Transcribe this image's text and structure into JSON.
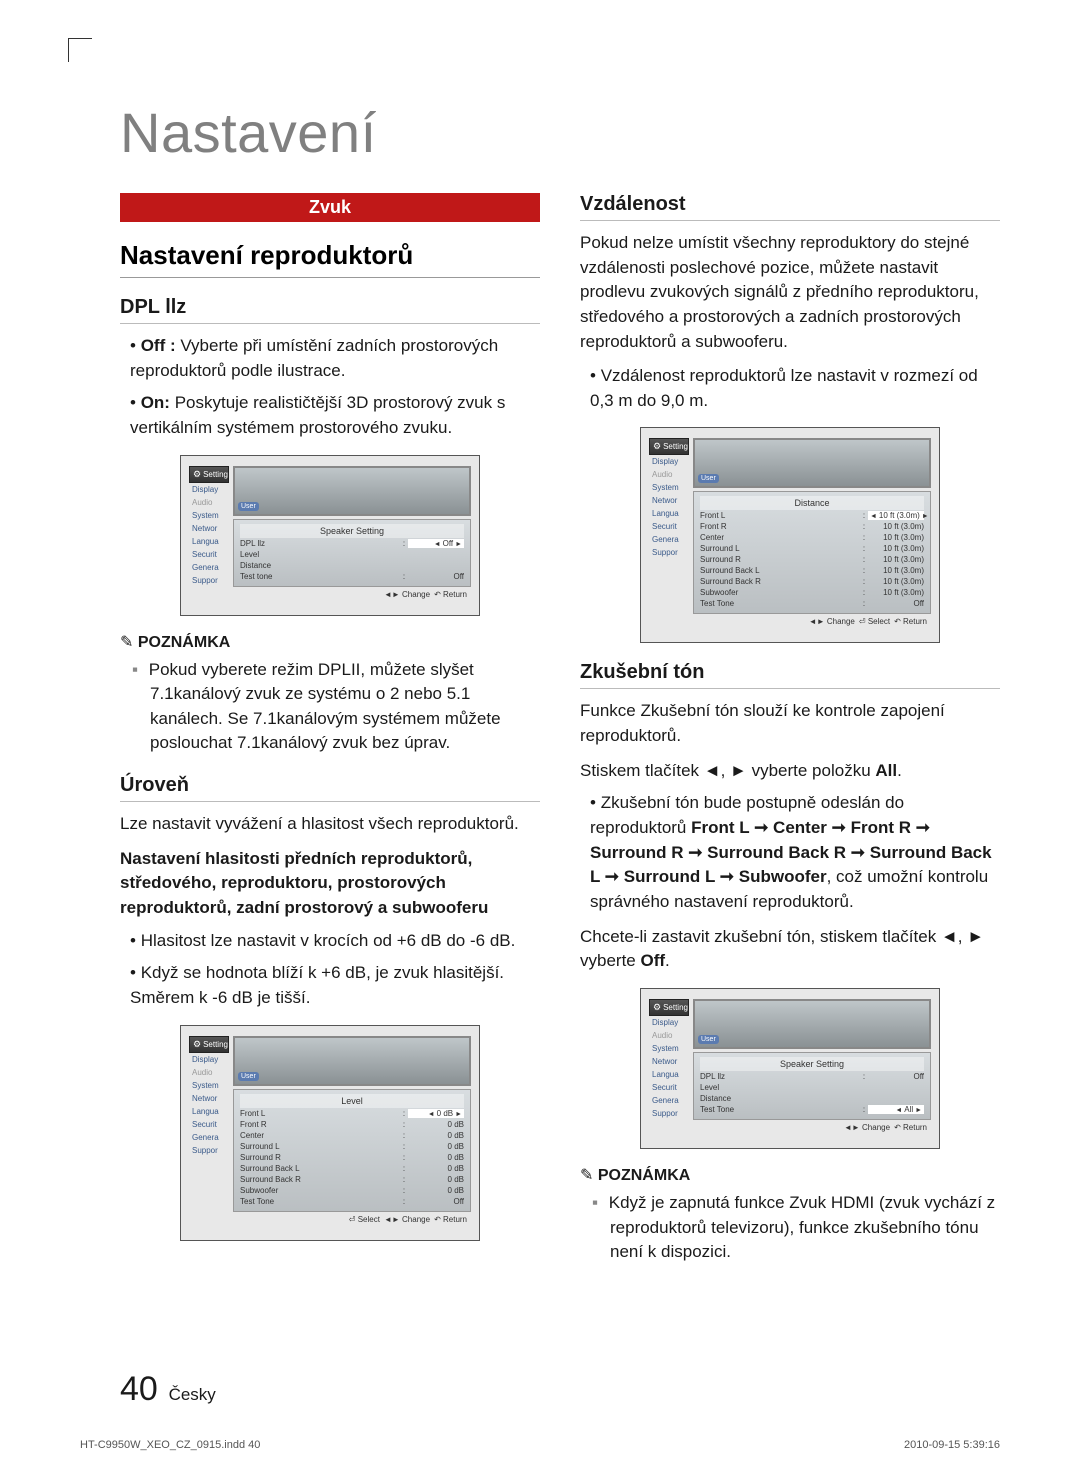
{
  "page": {
    "title": "Nastavení",
    "number": "40",
    "lang": "Česky",
    "indd": "HT-C9950W_XEO_CZ_0915.indd   40",
    "timestamp": "2010-09-15     5:39:16"
  },
  "left": {
    "tab": "Zvuk",
    "h2": "Nastavení reproduktorů",
    "dpl": {
      "title": "DPL llz",
      "items": [
        "Off : Vyberte při umístění zadních prostorových reproduktorů podle ilustrace.",
        "On: Poskytuje realističtější 3D prostorový zvuk s vertikálním systémem prostorového zvuku."
      ],
      "bold_prefixes": [
        "Off :",
        "On:"
      ]
    },
    "note_label": "POZNÁMKA",
    "note1": "Pokud vyberete režim DPLII, můžete slyšet 7.1kanálový zvuk ze systému o 2 nebo 5.1 kanálech. Se 7.1kanálovým systémem můžete poslouchat 7.1kanálový zvuk bez úprav.",
    "level": {
      "title": "Úroveň",
      "p1": "Lze nastavit vyvážení a hlasitost všech reproduktorů.",
      "p2": "Nastavení hlasitosti předních reproduktorů, středového, reproduktoru, prostorových reproduktorů, zadní prostorový a subwooferu",
      "items": [
        "Hlasitost lze nastavit v krocích od +6 dB do -6 dB.",
        "Když se hodnota blíží k +6 dB, je zvuk hlasitější. Směrem k -6 dB je tišší."
      ]
    }
  },
  "right": {
    "dist": {
      "title": "Vzdálenost",
      "p1": "Pokud nelze umístit všechny reproduktory do stejné vzdálenosti poslechové pozice, můžete nastavit prodlevu zvukových signálů z předního reproduktoru, středového a prostorových a zadních prostorových reproduktorů a subwooferu.",
      "item1": "Vzdálenost reproduktorů lze nastavit v rozmezí od 0,3 m do 9,0 m."
    },
    "tone": {
      "title": "Zkušební tón",
      "p1": "Funkce Zkušební tón slouží ke kontrole zapojení reproduktorů.",
      "p2_pre": "Stiskem tlačítek ◄, ► vyberte položku ",
      "p2_bold": "All",
      "item1_pre": "Zkušební tón bude postupně odeslán do reproduktorů ",
      "item1_bold": "Front L ➞ Center ➞ Front R ➞ Surround R ➞ Surround Back R ➞ Surround Back L ➞ Surround L ➞ Subwoofer",
      "item1_post": ", což umožní kontrolu správného nastavení reproduktorů.",
      "p3_pre": "Chcete-li zastavit zkušební tón, stiskem tlačítek ◄, ► vyberte ",
      "p3_bold": "Off",
      "note": "Když je zapnutá funkce Zvuk HDMI (zvuk vychází z reproduktorů televizoru), funkce zkušebního tónu není k dispozici."
    }
  },
  "tv": {
    "sidebar_head": "Setting",
    "sidebar": [
      "Display",
      "Audio",
      "System",
      "Networ",
      "Langua",
      "Securit",
      "Genera",
      "Suppor"
    ],
    "audio_dim_index": 1,
    "user_badge": "User",
    "footer_change": "◄► Change",
    "footer_select": "⏎ Select",
    "footer_return": "↶ Return",
    "screen1": {
      "title": "Speaker Setting",
      "rows": [
        {
          "l": "DPL llz",
          "c": ":",
          "r": "Off",
          "sel": true
        },
        {
          "l": "Level",
          "c": "",
          "r": ""
        },
        {
          "l": "Distance",
          "c": "",
          "r": ""
        },
        {
          "l": "Test tone",
          "c": ":",
          "r": "Off"
        }
      ],
      "footer": [
        "◄► Change",
        "↶ Return"
      ]
    },
    "screen2": {
      "title": "Level",
      "rows": [
        {
          "l": "Front L",
          "c": ":",
          "r": "0 dB",
          "sel": true
        },
        {
          "l": "Front R",
          "c": ":",
          "r": "0 dB"
        },
        {
          "l": "Center",
          "c": ":",
          "r": "0 dB"
        },
        {
          "l": "Surround L",
          "c": ":",
          "r": "0 dB"
        },
        {
          "l": "Surround R",
          "c": ":",
          "r": "0 dB"
        },
        {
          "l": "Surround Back L",
          "c": ":",
          "r": "0 dB"
        },
        {
          "l": "Surround Back R",
          "c": ":",
          "r": "0 dB"
        },
        {
          "l": "Subwoofer",
          "c": ":",
          "r": "0 dB"
        },
        {
          "l": "Test Tone",
          "c": ":",
          "r": "Off"
        }
      ],
      "footer": [
        "⏎ Select",
        "◄► Change",
        "↶ Return"
      ]
    },
    "screen3": {
      "title": "Distance",
      "rows": [
        {
          "l": "Front L",
          "c": ":",
          "r": "10 ft (3.0m)",
          "sel": true
        },
        {
          "l": "Front R",
          "c": ":",
          "r": "10 ft (3.0m)"
        },
        {
          "l": "Center",
          "c": ":",
          "r": "10 ft (3.0m)"
        },
        {
          "l": "Surround L",
          "c": ":",
          "r": "10 ft (3.0m)"
        },
        {
          "l": "Surround R",
          "c": ":",
          "r": "10 ft (3.0m)"
        },
        {
          "l": "Surround Back L",
          "c": ":",
          "r": "10 ft (3.0m)"
        },
        {
          "l": "Surround Back R",
          "c": ":",
          "r": "10 ft (3.0m)"
        },
        {
          "l": "Subwoofer",
          "c": ":",
          "r": "10 ft (3.0m)"
        },
        {
          "l": "Test Tone",
          "c": ":",
          "r": "Off"
        }
      ],
      "footer": [
        "◄► Change",
        "⏎ Select",
        "↶ Return"
      ]
    },
    "screen4": {
      "title": "Speaker Setting",
      "rows": [
        {
          "l": "DPL llz",
          "c": ":",
          "r": "Off"
        },
        {
          "l": "Level",
          "c": "",
          "r": ""
        },
        {
          "l": "Distance",
          "c": "",
          "r": ""
        },
        {
          "l": "Test Tone",
          "c": ":",
          "r": "All",
          "sel": true
        }
      ],
      "footer": [
        "◄► Change",
        "↶ Return"
      ]
    }
  }
}
